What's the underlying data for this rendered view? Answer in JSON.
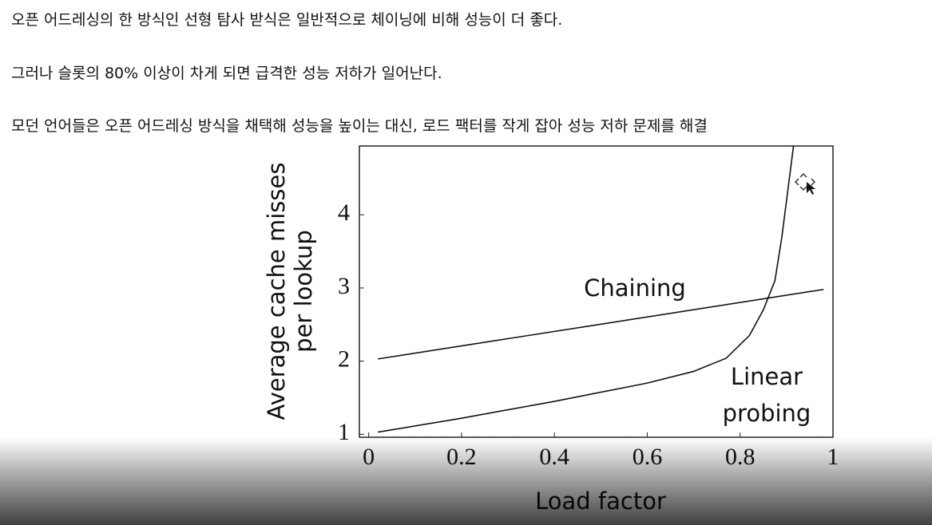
{
  "paragraphs": [
    "오픈 어드레싱의 한 방식인 선형 탐사 받식은 일반적으로 체이닝에 비해 성능이 더 좋다.",
    "그러나 슬롯의 80% 이상이 차게 되면 급격한 성능 저하가 일어난다.",
    "모던 언어들은 오픈 어드레싱 방식을 채택해 성능을 높이는 대신, 로드 팩터를 작게 잡아 성능 저하 문제를 해결"
  ],
  "chart_data": {
    "type": "line",
    "xlabel": "Load factor",
    "ylabel": [
      "Average cache misses",
      "per lookup"
    ],
    "xlim": [
      -0.02,
      1.0
    ],
    "xticks": [
      0,
      0.2,
      0.4,
      0.6,
      0.8,
      1
    ],
    "ylim": [
      0.96,
      4.94
    ],
    "yticks": [
      1,
      2,
      3,
      4
    ],
    "series": [
      {
        "name": "Chaining",
        "color": "#111111",
        "x": [
          0.02,
          0.98
        ],
        "values": [
          2.03,
          2.98
        ]
      },
      {
        "name": [
          "Linear",
          "probing"
        ],
        "color": "#111111",
        "x": [
          0.02,
          0.2,
          0.4,
          0.6,
          0.7,
          0.77,
          0.82,
          0.85,
          0.875,
          0.89,
          0.915
        ],
        "values": [
          1.03,
          1.22,
          1.45,
          1.7,
          1.86,
          2.04,
          2.35,
          2.7,
          3.1,
          3.7,
          4.94
        ]
      }
    ]
  }
}
